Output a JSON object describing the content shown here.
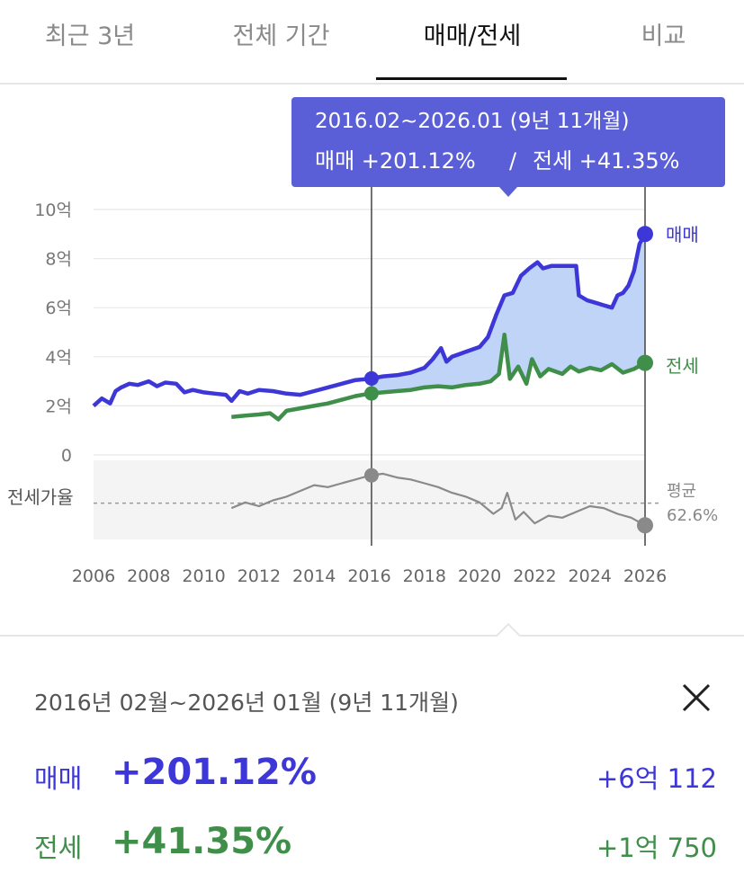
{
  "tabs": [
    {
      "label": "최근 3년",
      "active": false
    },
    {
      "label": "전체 기간",
      "active": false
    },
    {
      "label": "매매/전세",
      "active": true
    },
    {
      "label": "비교",
      "active": false
    }
  ],
  "tooltip": {
    "range": "2016.02~2026.01 (9년 11개월)",
    "buy_label": "매매 +201.12%",
    "sep": "/",
    "jeon_label": "전세 +41.35%"
  },
  "colors": {
    "buy": "#3d37d8",
    "buy_fill": "#bcd2f7",
    "jeon": "#3f8f4a",
    "ratio": "#8a8a8a",
    "tooltip_bg": "#5a5fd8"
  },
  "chart_data": {
    "type": "line",
    "x_unit": "year",
    "xlim": [
      2005.9,
      2026.3
    ],
    "ylim": [
      0,
      10
    ],
    "y_unit": "억",
    "y_ticks": [
      {
        "value": 10,
        "label": "10억"
      },
      {
        "value": 8,
        "label": "8억"
      },
      {
        "value": 6,
        "label": "6억"
      },
      {
        "value": 4,
        "label": "4억"
      },
      {
        "value": 2,
        "label": "2억"
      },
      {
        "value": 0,
        "label": "0"
      }
    ],
    "x_ticks": [
      "2006",
      "2008",
      "2010",
      "2012",
      "2014",
      "2016",
      "2018",
      "2020",
      "2022",
      "2024",
      "2026"
    ],
    "selection": {
      "start": 2016.08,
      "end": 2026.0
    },
    "series": [
      {
        "name": "매매",
        "points": [
          [
            2006.0,
            2.0
          ],
          [
            2006.3,
            2.3
          ],
          [
            2006.6,
            2.1
          ],
          [
            2006.8,
            2.6
          ],
          [
            2007.0,
            2.75
          ],
          [
            2007.3,
            2.9
          ],
          [
            2007.6,
            2.85
          ],
          [
            2008.0,
            3.0
          ],
          [
            2008.3,
            2.8
          ],
          [
            2008.6,
            2.95
          ],
          [
            2009.0,
            2.9
          ],
          [
            2009.3,
            2.55
          ],
          [
            2009.6,
            2.65
          ],
          [
            2010.0,
            2.55
          ],
          [
            2010.4,
            2.5
          ],
          [
            2010.8,
            2.45
          ],
          [
            2011.0,
            2.2
          ],
          [
            2011.3,
            2.6
          ],
          [
            2011.6,
            2.5
          ],
          [
            2012.0,
            2.65
          ],
          [
            2012.5,
            2.6
          ],
          [
            2013.0,
            2.5
          ],
          [
            2013.5,
            2.45
          ],
          [
            2014.0,
            2.6
          ],
          [
            2014.5,
            2.75
          ],
          [
            2015.0,
            2.9
          ],
          [
            2015.5,
            3.05
          ],
          [
            2016.0,
            3.1
          ],
          [
            2016.5,
            3.2
          ],
          [
            2017.0,
            3.25
          ],
          [
            2017.5,
            3.35
          ],
          [
            2018.0,
            3.55
          ],
          [
            2018.3,
            3.9
          ],
          [
            2018.6,
            4.35
          ],
          [
            2018.8,
            3.8
          ],
          [
            2019.0,
            4.0
          ],
          [
            2019.5,
            4.2
          ],
          [
            2020.0,
            4.4
          ],
          [
            2020.3,
            4.8
          ],
          [
            2020.6,
            5.7
          ],
          [
            2020.9,
            6.5
          ],
          [
            2021.2,
            6.6
          ],
          [
            2021.5,
            7.3
          ],
          [
            2021.8,
            7.6
          ],
          [
            2022.1,
            7.85
          ],
          [
            2022.3,
            7.6
          ],
          [
            2022.6,
            7.7
          ],
          [
            2023.0,
            7.7
          ],
          [
            2023.5,
            7.7
          ],
          [
            2023.6,
            6.5
          ],
          [
            2023.9,
            6.3
          ],
          [
            2024.2,
            6.2
          ],
          [
            2024.5,
            6.1
          ],
          [
            2024.8,
            6.0
          ],
          [
            2025.0,
            6.5
          ],
          [
            2025.2,
            6.6
          ],
          [
            2025.4,
            6.9
          ],
          [
            2025.6,
            7.5
          ],
          [
            2025.8,
            8.6
          ],
          [
            2026.0,
            9.0
          ]
        ]
      },
      {
        "name": "전세",
        "points": [
          [
            2011.0,
            1.55
          ],
          [
            2011.5,
            1.6
          ],
          [
            2012.0,
            1.65
          ],
          [
            2012.4,
            1.7
          ],
          [
            2012.7,
            1.45
          ],
          [
            2013.0,
            1.8
          ],
          [
            2013.5,
            1.9
          ],
          [
            2014.0,
            2.0
          ],
          [
            2014.5,
            2.1
          ],
          [
            2015.0,
            2.25
          ],
          [
            2015.5,
            2.4
          ],
          [
            2016.0,
            2.5
          ],
          [
            2016.5,
            2.55
          ],
          [
            2017.0,
            2.6
          ],
          [
            2017.5,
            2.65
          ],
          [
            2018.0,
            2.75
          ],
          [
            2018.5,
            2.8
          ],
          [
            2019.0,
            2.75
          ],
          [
            2019.5,
            2.85
          ],
          [
            2020.0,
            2.9
          ],
          [
            2020.4,
            3.0
          ],
          [
            2020.7,
            3.3
          ],
          [
            2020.9,
            4.9
          ],
          [
            2021.1,
            3.1
          ],
          [
            2021.4,
            3.6
          ],
          [
            2021.7,
            2.9
          ],
          [
            2021.9,
            3.9
          ],
          [
            2022.2,
            3.2
          ],
          [
            2022.5,
            3.5
          ],
          [
            2023.0,
            3.3
          ],
          [
            2023.3,
            3.6
          ],
          [
            2023.6,
            3.4
          ],
          [
            2024.0,
            3.55
          ],
          [
            2024.4,
            3.45
          ],
          [
            2024.8,
            3.7
          ],
          [
            2025.2,
            3.35
          ],
          [
            2025.6,
            3.5
          ],
          [
            2026.0,
            3.75
          ]
        ]
      },
      {
        "name": "전세가율",
        "unit": "%",
        "points": [
          [
            2011.0,
            60
          ],
          [
            2011.5,
            63
          ],
          [
            2012.0,
            61
          ],
          [
            2012.5,
            64
          ],
          [
            2013.0,
            66
          ],
          [
            2013.5,
            69
          ],
          [
            2014.0,
            72
          ],
          [
            2014.5,
            71
          ],
          [
            2015.0,
            73
          ],
          [
            2015.5,
            75
          ],
          [
            2016.0,
            77
          ],
          [
            2016.5,
            78
          ],
          [
            2017.0,
            76
          ],
          [
            2017.5,
            75
          ],
          [
            2018.0,
            73
          ],
          [
            2018.5,
            71
          ],
          [
            2019.0,
            68
          ],
          [
            2019.5,
            66
          ],
          [
            2020.0,
            63
          ],
          [
            2020.5,
            57
          ],
          [
            2020.8,
            60
          ],
          [
            2021.0,
            68
          ],
          [
            2021.3,
            54
          ],
          [
            2021.6,
            58
          ],
          [
            2022.0,
            52
          ],
          [
            2022.5,
            56
          ],
          [
            2023.0,
            55
          ],
          [
            2023.5,
            58
          ],
          [
            2024.0,
            61
          ],
          [
            2024.5,
            60
          ],
          [
            2025.0,
            57
          ],
          [
            2025.5,
            55
          ],
          [
            2026.0,
            51
          ]
        ],
        "average": 62.6
      }
    ],
    "ratio_label": "전세가율",
    "ratio_avg_label": "평균",
    "ratio_avg_value": "62.6%"
  },
  "summary": {
    "period": "2016년 02월~2026년 01월 (9년 11개월)",
    "buy": {
      "label": "매매",
      "pct": "+201.12%",
      "diff": "+6억 112"
    },
    "jeon": {
      "label": "전세",
      "pct": "+41.35%",
      "diff": "+1억 750"
    }
  }
}
